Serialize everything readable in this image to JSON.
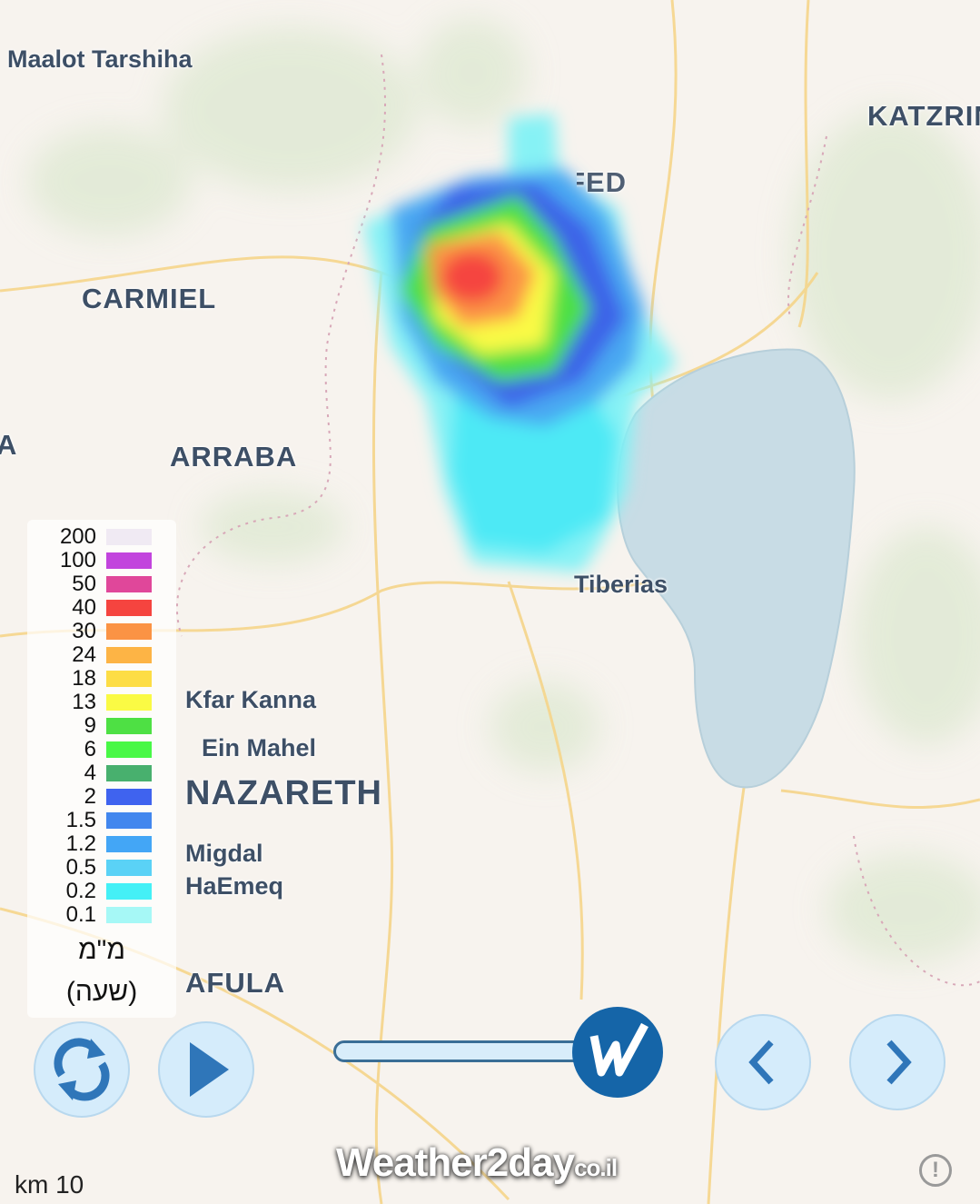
{
  "map": {
    "labels": {
      "maalot": "Maalot Tarshiha",
      "katzrin": "KATZRIN",
      "safed": "SAFED",
      "carmiel": "CARMIEL",
      "edge_a": "A",
      "arraba": "ARRABA",
      "tiberias": "Tiberias",
      "kfar_kanna": "Kfar Kanna",
      "ein_mahel": "Ein Mahel",
      "nazareth": "NAZARETH",
      "migdal": "Migdal",
      "haemeq": "HaEmeq",
      "afula": "AFULA"
    },
    "colors": {
      "land": "#f7f3ee",
      "vegetation": "#dfe9d3",
      "water": "#c8dce5",
      "roads": "#f5d58a"
    }
  },
  "legend": {
    "bins": [
      {
        "value": "200",
        "color": "#f0eaf3"
      },
      {
        "value": "100",
        "color": "#c244dd"
      },
      {
        "value": "50",
        "color": "#e0479a"
      },
      {
        "value": "40",
        "color": "#f5443f"
      },
      {
        "value": "30",
        "color": "#fb9344"
      },
      {
        "value": "24",
        "color": "#fdb445"
      },
      {
        "value": "18",
        "color": "#fddd45"
      },
      {
        "value": "13",
        "color": "#fafa44"
      },
      {
        "value": "9",
        "color": "#4ee044"
      },
      {
        "value": "6",
        "color": "#48f846"
      },
      {
        "value": "4",
        "color": "#48b06e"
      },
      {
        "value": "2",
        "color": "#3f63ef"
      },
      {
        "value": "1.5",
        "color": "#4287ee"
      },
      {
        "value": "1.2",
        "color": "#43a6f6"
      },
      {
        "value": "0.5",
        "color": "#5ad2f6"
      },
      {
        "value": "0.2",
        "color": "#44f0f6"
      },
      {
        "value": "0.1",
        "color": "#a6f8f6"
      }
    ],
    "unit_line1": "מ\"מ",
    "unit_line2": "(שעה)"
  },
  "controls": {
    "refresh_icon": "refresh-icon",
    "play_icon": "play-icon",
    "prev_icon": "chevron-left-icon",
    "next_icon": "chevron-right-icon",
    "timeline_progress": 1.0,
    "accent": "#1565a8"
  },
  "footer": {
    "brand_main": "Weather2day",
    "brand_suffix": "co.il",
    "scale": "km 10",
    "info": "!"
  }
}
